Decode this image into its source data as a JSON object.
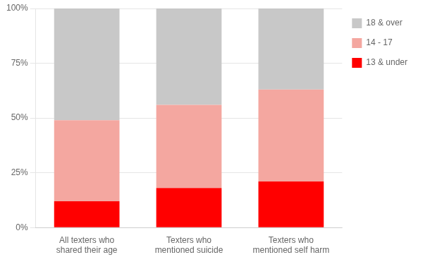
{
  "chart_data": {
    "type": "bar",
    "stacked": true,
    "categories": [
      "All texters who\nshared their age",
      "Texters who\nmentioned suicide",
      "Texters who\nmentioned self harm"
    ],
    "series": [
      {
        "name": "13 & under",
        "color": "#ff0000",
        "values": [
          12,
          18,
          21
        ]
      },
      {
        "name": "14 - 17",
        "color": "#f4a7a0",
        "values": [
          37,
          38,
          42
        ]
      },
      {
        "name": "18 & over",
        "color": "#c8c8c8",
        "values": [
          51,
          44,
          37
        ]
      }
    ],
    "ylim": [
      0,
      100
    ],
    "yticks": [
      {
        "value": 0,
        "label": "0%"
      },
      {
        "value": 25,
        "label": "25%"
      },
      {
        "value": 50,
        "label": "50%"
      },
      {
        "value": 75,
        "label": "75%"
      },
      {
        "value": 100,
        "label": "100%"
      }
    ],
    "grid": true,
    "legend": "right"
  }
}
